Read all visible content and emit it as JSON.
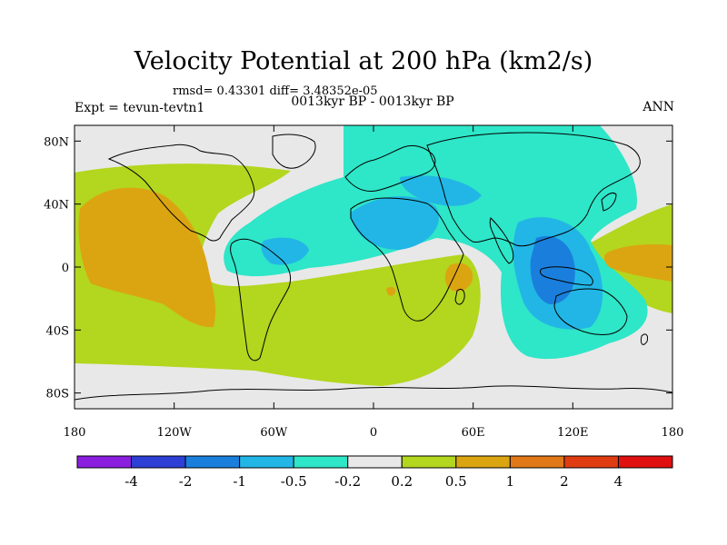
{
  "title": "Velocity Potential at 200 hPa (km2/s)",
  "stats_line": "rmsd= 0.43301 diff= 3.48352e-05",
  "experiment": "Expt = tevun-tevtn1",
  "period": "0013kyr BP - 0013kyr BP",
  "season": "ANN",
  "map": {
    "projection": "cylindrical equidistant",
    "lon_range": [
      -180,
      180
    ],
    "lat_range": [
      -90,
      90
    ],
    "x_ticks": [
      "180",
      "120W",
      "60W",
      "0",
      "60E",
      "120E",
      "180"
    ],
    "y_ticks": [
      "80N",
      "40N",
      "0",
      "40S",
      "80S"
    ],
    "background_color": "#e8e8e8",
    "coastline_color": "#000000"
  },
  "colorbar": {
    "labels": [
      "-4",
      "-2",
      "-1",
      "-0.5",
      "-0.2",
      "0.2",
      "0.5",
      "1",
      "2",
      "4"
    ],
    "colors": [
      "#8a1fe0",
      "#2e3fd6",
      "#1a7fdc",
      "#22b6e6",
      "#2ee6c8",
      "#e8e8e8",
      "#b3d61e",
      "#dba512",
      "#e07818",
      "#e03c12",
      "#e01010"
    ]
  }
}
